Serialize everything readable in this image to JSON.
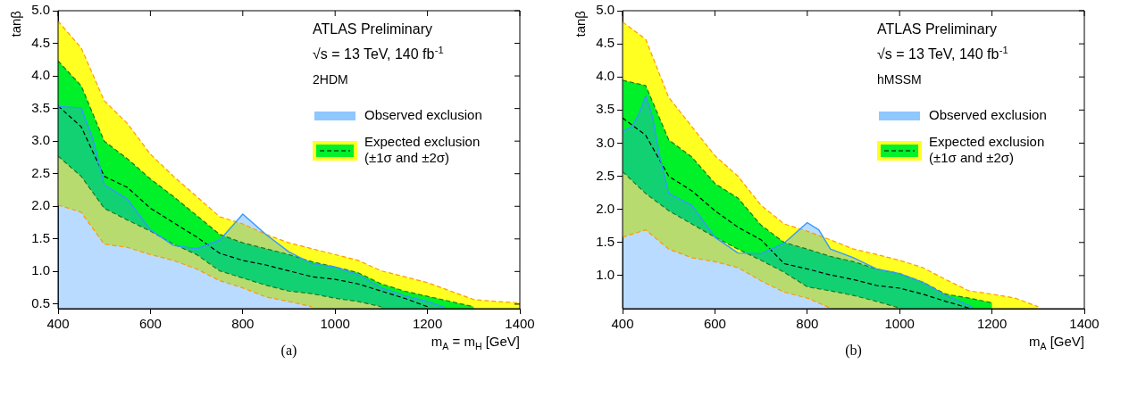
{
  "chart_data": [
    {
      "type": "area",
      "xlabel": "m$_{A}$ = m$_{H}$ [GeV]",
      "ylabel": "tanβ",
      "xlim": [
        400,
        1400
      ],
      "xticks": [
        400,
        600,
        800,
        1000,
        1200,
        1400
      ],
      "ylim": [
        0.43,
        5.0
      ],
      "yticks": [
        0.5,
        {
          "value": 1,
          "label": "1.0"
        },
        1.5,
        {
          "value": 2,
          "label": "2.0"
        },
        2.5,
        {
          "value": 3,
          "label": "3.0"
        },
        3.5,
        {
          "value": 4,
          "label": "4.0"
        },
        4.5,
        {
          "value": 5,
          "label": "5.0"
        }
      ],
      "legend": "top right",
      "annotations": [
        "ATLAS Preliminary",
        "√s = 13 TeV, 140 fb$^{-1}$",
        "2HDM",
        "(a)"
      ],
      "series": [
        {
          "type": "area",
          "color": "#ffff22",
          "line_style": "dashed",
          "x": [
            400,
            450,
            500,
            550,
            600,
            650,
            700,
            750,
            800,
            850,
            900,
            950,
            1000,
            1050,
            1100,
            1150,
            1200,
            1250,
            1300,
            1350,
            1400
          ],
          "values": [
            4.84,
            4.43,
            3.62,
            3.27,
            2.8,
            2.46,
            2.15,
            1.84,
            1.73,
            1.57,
            1.44,
            1.35,
            1.26,
            1.17,
            1.01,
            0.92,
            0.83,
            0.7,
            0.57,
            0.54,
            0.52
          ]
        },
        {
          "type": "area",
          "color": "#00f029",
          "line_style": "dashed",
          "x": [
            400,
            450,
            500,
            550,
            600,
            650,
            700,
            750,
            800,
            850,
            900,
            950,
            1000,
            1050,
            1100,
            1150,
            1200,
            1250,
            1300
          ],
          "values": [
            4.23,
            3.85,
            3.0,
            2.73,
            2.42,
            2.15,
            1.86,
            1.57,
            1.44,
            1.35,
            1.26,
            1.15,
            1.07,
            0.98,
            0.81,
            0.7,
            0.62,
            0.54,
            0.46
          ]
        },
        {
          "type": "line",
          "color": "#1f7a1f",
          "line_style": "dashed",
          "x": [
            400,
            450,
            500,
            550,
            600,
            650,
            700,
            750,
            800,
            850,
            900,
            950,
            1000,
            1050,
            1100
          ],
          "values": [
            2.77,
            2.46,
            1.97,
            1.79,
            1.62,
            1.42,
            1.26,
            1.01,
            0.9,
            0.79,
            0.7,
            0.66,
            0.59,
            0.54,
            0.46
          ]
        },
        {
          "type": "line",
          "color": "#ff9900",
          "line_style": "dashed",
          "x": [
            400,
            450,
            500,
            550,
            600,
            650,
            700,
            750,
            800,
            850,
            900,
            950
          ],
          "values": [
            2.02,
            1.91,
            1.42,
            1.37,
            1.26,
            1.17,
            1.04,
            0.86,
            0.75,
            0.61,
            0.54,
            0.46
          ]
        },
        {
          "type": "line",
          "name": "Expected exclusion (±1σ and ±2σ)",
          "color": "#000000",
          "line_style": "dashed",
          "x": [
            400,
            450,
            500,
            550,
            600,
            650,
            700,
            750,
            800,
            850,
            900,
            950,
            1000,
            1050,
            1100,
            1150,
            1200
          ],
          "values": [
            3.54,
            3.22,
            2.46,
            2.29,
            1.97,
            1.75,
            1.53,
            1.28,
            1.17,
            1.1,
            1.01,
            0.92,
            0.88,
            0.81,
            0.7,
            0.59,
            0.46
          ]
        },
        {
          "type": "area",
          "name": "Observed exclusion",
          "color": "#3399ff",
          "line_style": "solid",
          "x": [
            400,
            450,
            475,
            500,
            550,
            600,
            650,
            700,
            750,
            800,
            850,
            900,
            950,
            1000,
            1050,
            1100,
            1150,
            1200,
            1240
          ],
          "values": [
            3.53,
            3.51,
            3.04,
            2.33,
            2.11,
            1.64,
            1.4,
            1.35,
            1.48,
            1.88,
            1.57,
            1.3,
            1.12,
            1.07,
            0.95,
            0.75,
            0.63,
            0.54,
            0.44
          ]
        }
      ]
    },
    {
      "type": "area",
      "xlabel": "m$_{A}$ [GeV]",
      "ylabel": "tanβ",
      "xlim": [
        400,
        1400
      ],
      "xticks": [
        400,
        600,
        800,
        1000,
        1200,
        1400
      ],
      "ylim": [
        0.5,
        5.0
      ],
      "yticks": [
        {
          "value": 1,
          "label": "1.0"
        },
        1.5,
        {
          "value": 2,
          "label": "2.0"
        },
        2.5,
        {
          "value": 3,
          "label": "3.0"
        },
        3.5,
        {
          "value": 4,
          "label": "4.0"
        },
        4.5,
        {
          "value": 5,
          "label": "5.0"
        }
      ],
      "legend": "top right",
      "annotations": [
        "ATLAS Preliminary",
        "√s = 13 TeV, 140 fb$^{-1}$",
        "hMSSM",
        "(b)"
      ],
      "series": [
        {
          "type": "area",
          "color": "#ffff22",
          "line_style": "dashed",
          "x": [
            400,
            450,
            500,
            550,
            600,
            650,
            700,
            750,
            800,
            850,
            900,
            950,
            1000,
            1050,
            1100,
            1150,
            1200,
            1250,
            1300
          ],
          "values": [
            4.83,
            4.57,
            3.69,
            3.25,
            2.81,
            2.5,
            2.06,
            1.78,
            1.67,
            1.54,
            1.4,
            1.32,
            1.23,
            1.12,
            0.94,
            0.77,
            0.72,
            0.66,
            0.53
          ]
        },
        {
          "type": "area",
          "color": "#00f029",
          "line_style": "dashed",
          "x": [
            400,
            450,
            500,
            550,
            600,
            650,
            700,
            750,
            800,
            850,
            900,
            950,
            1000,
            1050,
            1100,
            1150,
            1200
          ],
          "values": [
            3.95,
            3.87,
            3.05,
            2.79,
            2.39,
            2.17,
            1.76,
            1.5,
            1.4,
            1.29,
            1.21,
            1.1,
            1.03,
            0.9,
            0.72,
            0.66,
            0.59
          ]
        },
        {
          "type": "line",
          "color": "#1f7a1f",
          "line_style": "dashed",
          "x": [
            400,
            450,
            500,
            550,
            600,
            650,
            700,
            750,
            800,
            850,
            900,
            950,
            1000
          ],
          "values": [
            2.57,
            2.24,
            1.98,
            1.78,
            1.58,
            1.4,
            1.23,
            1.05,
            0.83,
            0.77,
            0.7,
            0.61,
            0.51
          ]
        },
        {
          "type": "line",
          "color": "#ff9900",
          "line_style": "dashed",
          "x": [
            400,
            450,
            500,
            550,
            600,
            650,
            700,
            750,
            800,
            850
          ],
          "values": [
            1.58,
            1.69,
            1.4,
            1.27,
            1.21,
            1.12,
            0.92,
            0.75,
            0.66,
            0.51
          ]
        },
        {
          "type": "line",
          "name": "Expected exclusion (±1σ and ±2σ)",
          "color": "#000000",
          "line_style": "dashed",
          "x": [
            400,
            450,
            500,
            550,
            600,
            650,
            700,
            750,
            800,
            850,
            900,
            950,
            1000,
            1050,
            1100,
            1150
          ],
          "values": [
            3.38,
            3.12,
            2.5,
            2.28,
            1.98,
            1.73,
            1.54,
            1.18,
            1.1,
            1.01,
            0.94,
            0.85,
            0.81,
            0.72,
            0.61,
            0.51
          ]
        },
        {
          "type": "area",
          "name": "Observed exclusion",
          "color": "#3399ff",
          "line_style": "solid",
          "x": [
            400,
            420,
            435,
            450,
            465,
            480,
            500,
            550,
            600,
            650,
            700,
            750,
            800,
            825,
            850,
            900,
            950,
            1000,
            1050,
            1100,
            1150,
            1160
          ],
          "values": [
            3.17,
            3.25,
            3.43,
            3.71,
            3.4,
            2.81,
            2.24,
            2.06,
            1.58,
            1.34,
            1.33,
            1.49,
            1.8,
            1.69,
            1.4,
            1.27,
            1.1,
            1.03,
            0.9,
            0.7,
            0.55,
            0.51
          ]
        }
      ]
    }
  ]
}
